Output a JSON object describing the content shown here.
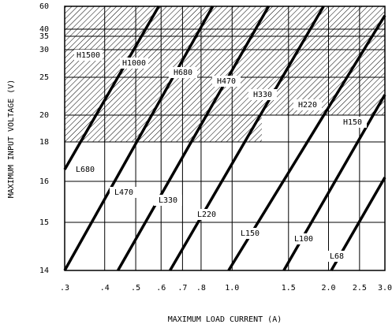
{
  "chart_data": {
    "type": "line",
    "xlabel": "MAXIMUM LOAD CURRENT (A)",
    "ylabel": "MAXIMUM INPUT VOLTAGE (V)",
    "xscale": "log",
    "xlim": [
      0.3,
      3.0
    ],
    "xticks": [
      {
        "value": 0.3,
        "label": ".3"
      },
      {
        "value": 0.4,
        "label": ".4"
      },
      {
        "value": 0.5,
        "label": ".5"
      },
      {
        "value": 0.6,
        "label": ".6"
      },
      {
        "value": 0.7,
        "label": ".7"
      },
      {
        "value": 0.8,
        "label": ".8"
      },
      {
        "value": 1.0,
        "label": "1.0"
      },
      {
        "value": 1.5,
        "label": "1.5"
      },
      {
        "value": 2.0,
        "label": "2.0"
      },
      {
        "value": 2.5,
        "label": "2.5"
      },
      {
        "value": 3.0,
        "label": "3.0"
      }
    ],
    "ylim": [
      14,
      60
    ],
    "yticks": [
      60,
      40,
      35,
      30,
      25,
      20,
      18,
      16,
      15,
      14
    ],
    "grid": true,
    "series": [
      {
        "color": "#000000",
        "x": [
          0.3,
          0.59
        ],
        "values": [
          16.6,
          60
        ]
      },
      {
        "color": "#000000",
        "x": [
          0.3,
          0.87
        ],
        "values": [
          14,
          60
        ]
      },
      {
        "color": "#000000",
        "x": [
          0.44,
          1.3
        ],
        "values": [
          14,
          60
        ]
      },
      {
        "color": "#000000",
        "x": [
          0.64,
          1.93
        ],
        "values": [
          14,
          60
        ]
      },
      {
        "color": "#000000",
        "x": [
          0.975,
          3.0
        ],
        "values": [
          14,
          52
        ]
      },
      {
        "color": "#000000",
        "x": [
          1.45,
          3.0
        ],
        "values": [
          14,
          22.7
        ]
      },
      {
        "color": "#000000",
        "x": [
          2.04,
          3.0
        ],
        "values": [
          14,
          16.2
        ]
      }
    ],
    "annotations": [
      "H1500",
      "H1000",
      "H680",
      "H470",
      "H330",
      "H220",
      "H150",
      "L680",
      "L470",
      "L330",
      "L220",
      "L150",
      "L100",
      "L68"
    ]
  }
}
